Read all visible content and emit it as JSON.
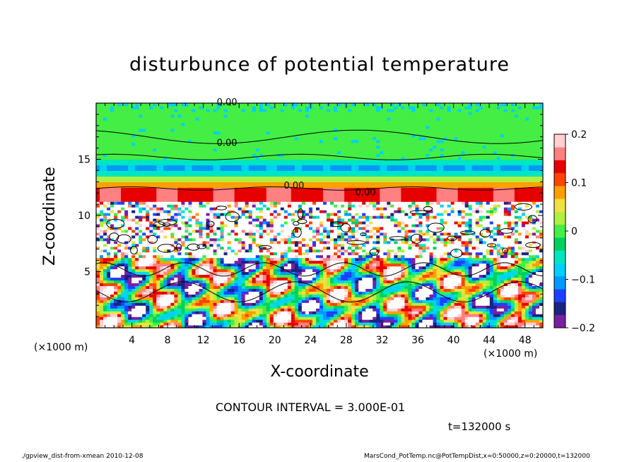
{
  "chart_data": {
    "type": "heatmap",
    "title": "disturbunce of potential temperature",
    "xlabel": "X-coordinate",
    "ylabel": "Z-coordinate",
    "x_unit": "(×1000 m)",
    "z_unit": "(×1000 m)",
    "xlim": [
      0,
      50
    ],
    "ylim": [
      0,
      20
    ],
    "x_ticks": [
      "4",
      "8",
      "12",
      "16",
      "20",
      "24",
      "28",
      "32",
      "36",
      "40",
      "44",
      "48"
    ],
    "y_ticks": [
      "5",
      "10",
      "15"
    ],
    "colorbar": {
      "range": [
        -0.2,
        0.2
      ],
      "labels": [
        "0.2",
        "0.1",
        "0",
        "−0.1",
        "−0.2"
      ],
      "colors": [
        "#7b1fa2",
        "#1a237e",
        "#1e40ff",
        "#0099ff",
        "#00d0ff",
        "#00e6c0",
        "#00d060",
        "#44ee44",
        "#b0f040",
        "#f0e040",
        "#ffa000",
        "#ff4400",
        "#e60000",
        "#ff8080",
        "#ffd0d0"
      ]
    },
    "contour_labels": [
      "0.00",
      "0.00",
      "0.00",
      "0.00"
    ],
    "contour_interval_text": "CONTOUR INTERVAL = 3.000E-01"
  },
  "time_text": "t=132000 s",
  "footer": {
    "left": "./gpview_dist-from-xmean   2010-12-08",
    "right": "MarsCond_PotTemp.nc@PotTempDist,x=0:50000,z=0:20000,t=132000"
  }
}
